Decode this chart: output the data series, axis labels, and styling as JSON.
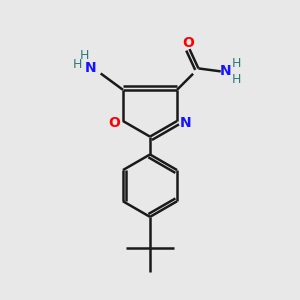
{
  "bg_color": "#e8e8e8",
  "bond_color": "#1a1a1a",
  "N_color": "#1414ff",
  "O_color": "#ff0000",
  "NH_color": "#2d7a7a",
  "figsize": [
    3.0,
    3.0
  ],
  "dpi": 100,
  "xlim": [
    0,
    10
  ],
  "ylim": [
    0,
    10
  ]
}
